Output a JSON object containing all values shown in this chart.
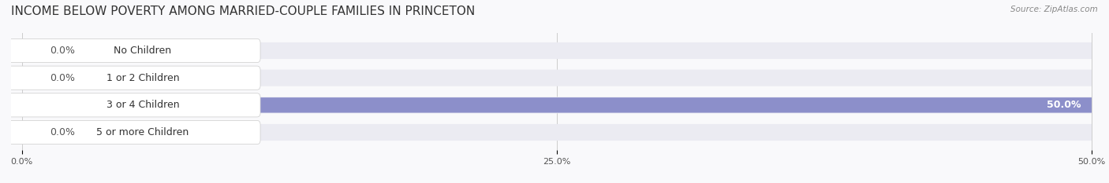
{
  "title": "INCOME BELOW POVERTY AMONG MARRIED-COUPLE FAMILIES IN PRINCETON",
  "source": "Source: ZipAtlas.com",
  "categories": [
    "No Children",
    "1 or 2 Children",
    "3 or 4 Children",
    "5 or more Children"
  ],
  "values": [
    0.0,
    0.0,
    50.0,
    0.0
  ],
  "bar_colors": [
    "#c9a8d4",
    "#5ec8c0",
    "#7b7fc4",
    "#f4a0b5"
  ],
  "label_colors": [
    "#c9a8d4",
    "#5ec8c0",
    "#7b7fc4",
    "#f4a0b5"
  ],
  "xlim": [
    0,
    50
  ],
  "xticks": [
    0,
    25,
    50
  ],
  "xtick_labels": [
    "0.0%",
    "25.0%",
    "50.0%"
  ],
  "bar_height": 0.55,
  "background_color": "#f0f0f5",
  "bar_background_color": "#e8e8f0",
  "title_fontsize": 11,
  "label_fontsize": 9,
  "value_fontsize": 9
}
